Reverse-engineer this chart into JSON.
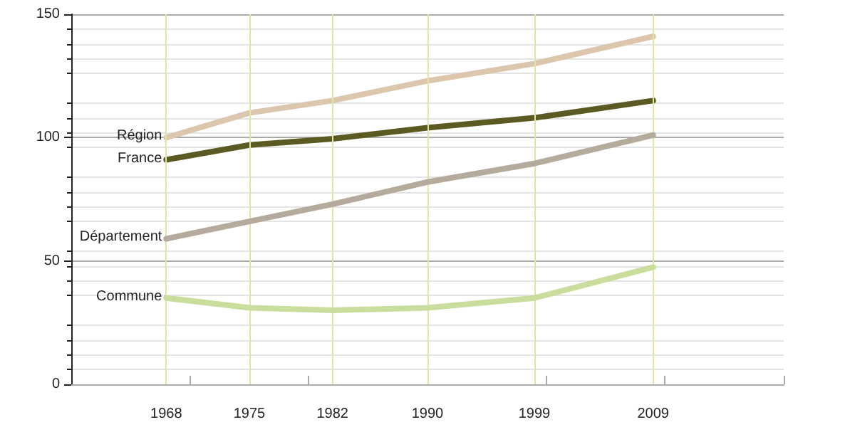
{
  "chart_data": {
    "type": "line",
    "x": [
      1968,
      1975,
      1982,
      1990,
      1999,
      2009
    ],
    "series": [
      {
        "name": "Région",
        "color": "#dcc6ad",
        "values": [
          100,
          110,
          115,
          123,
          130,
          141
        ]
      },
      {
        "name": "France",
        "color": "#5a5a22",
        "values": [
          91,
          97,
          99.5,
          104,
          108,
          115
        ]
      },
      {
        "name": "Département",
        "color": "#b5aa9b",
        "values": [
          59,
          66,
          73,
          82,
          89.5,
          101
        ]
      },
      {
        "name": "Commune",
        "color": "#c9dd9c",
        "values": [
          35,
          31,
          30,
          31,
          35,
          47.5
        ]
      }
    ],
    "xlim": [
      1960,
      2020
    ],
    "xticks": [
      {
        "value": 1968,
        "label": "1968"
      },
      {
        "value": 1970,
        "label": null
      },
      {
        "value": 1975,
        "label": "1975"
      },
      {
        "value": 1980,
        "label": null
      },
      {
        "value": 1982,
        "label": "1982"
      },
      {
        "value": 1990,
        "label": "1990"
      },
      {
        "value": 1999,
        "label": "1999"
      },
      {
        "value": 2000,
        "label": null
      },
      {
        "value": 2009,
        "label": "2009"
      },
      {
        "value": 2010,
        "label": null
      },
      {
        "value": 2020,
        "label": null
      }
    ],
    "ylim": [
      0,
      150
    ],
    "yticks": [
      0,
      50,
      100,
      150
    ],
    "grid": "y",
    "legend": false,
    "marker": "none",
    "line_style": "solid",
    "ref_lines": [
      {
        "axis": "x",
        "value": 1968,
        "color": "#dde5a9"
      },
      {
        "axis": "x",
        "value": 1975,
        "color": "#dde5a9"
      },
      {
        "axis": "x",
        "value": 1982,
        "color": "#dde5a9"
      },
      {
        "axis": "x",
        "value": 1990,
        "color": "#dde5a9"
      },
      {
        "axis": "x",
        "value": 1999,
        "color": "#dde5a9"
      },
      {
        "axis": "x",
        "value": 2009,
        "color": "#dde5a9"
      }
    ]
  }
}
